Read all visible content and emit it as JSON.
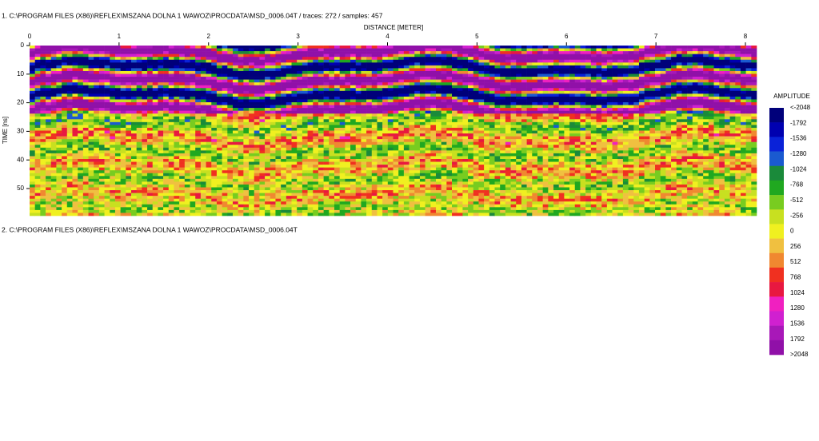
{
  "header": {
    "line1": "1. C:\\PROGRAM FILES (X86)\\REFLEX\\MSZANA DOLNA 1 WAWOZ\\PROCDATA\\MSD_0006.04T / traces: 272 / samples: 457",
    "line2": "2. C:\\PROGRAM FILES (X86)\\REFLEX\\MSZANA DOLNA 1 WAWOZ\\PROCDATA\\MSD_0006.04T"
  },
  "plot": {
    "x_label": "DISTANCE [METER]",
    "xlim": [
      0,
      8.125
    ],
    "xticks": [
      0,
      1,
      2,
      3,
      4,
      5,
      6,
      7,
      8
    ],
    "y_label": "TIME [ns]",
    "ylim": [
      0,
      59.5
    ],
    "yticks": [
      0,
      10,
      20,
      30,
      40,
      50
    ]
  },
  "colorbar": {
    "title": "AMPLITUDE",
    "ticks": [
      {
        "value": -2048,
        "label": "<-2048"
      },
      -1792,
      -1536,
      -1280,
      -1024,
      -768,
      -512,
      -256,
      0,
      256,
      512,
      768,
      1024,
      1280,
      1536,
      1792,
      {
        "value": 2048,
        "label": ">2048"
      }
    ],
    "colors": [
      "#00007a",
      "#0000b0",
      "#0a22d8",
      "#1a5ad0",
      "#1a8a3a",
      "#20a820",
      "#78cc20",
      "#c8e020",
      "#f0f020",
      "#f0c040",
      "#f08830",
      "#f03020",
      "#e81840",
      "#f020c0",
      "#d020d0",
      "#a818b8",
      "#9010a8"
    ]
  }
}
